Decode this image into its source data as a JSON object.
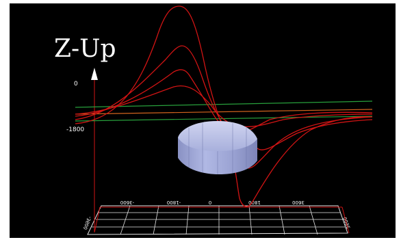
{
  "scene": {
    "axis_title": "Z-Up",
    "z_labels": {
      "top": "0",
      "middle": "-1800"
    },
    "floor_ticks": [
      "-3600",
      "-1800",
      "0",
      "1800",
      "3600"
    ],
    "corner_labels": {
      "left": "-3600",
      "right": "3600"
    }
  },
  "colors": {
    "background": "#000000",
    "curve": "#d21414",
    "plane_line_green": "#28a03c",
    "plane_line_orange": "#d2641e",
    "grid": "#e6e6e6",
    "object_fill": "#a0a8d8"
  },
  "icons": {
    "z_arrow": "arrow-up-icon",
    "object": "polyhedral-cylinder-object"
  }
}
